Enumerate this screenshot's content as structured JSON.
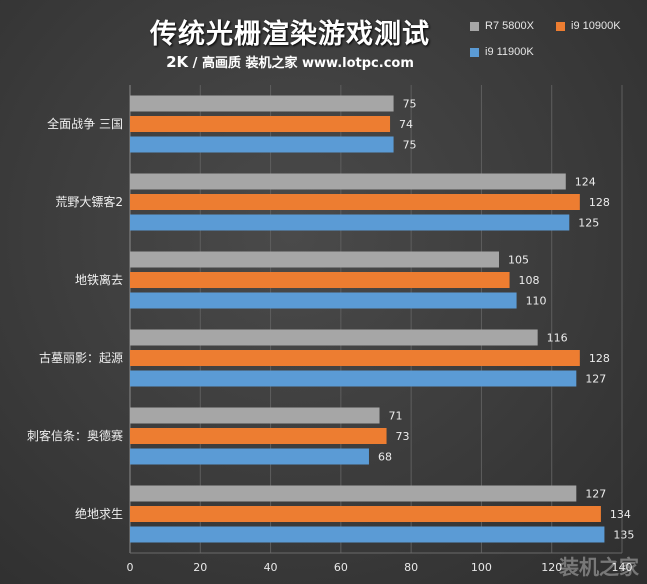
{
  "header": {
    "title": "传统光栅渲染游戏测试",
    "subtitle_res": "2K",
    "subtitle_rest": " / 高画质  装机之家 www.lotpc.com"
  },
  "legend": [
    {
      "label": "R7 5800X",
      "color": "#a6a6a6"
    },
    {
      "label": "i9 10900K",
      "color": "#ed7d31"
    },
    {
      "label": "i9 11900K",
      "color": "#5b9bd5"
    }
  ],
  "watermark": "装机之家",
  "chart_data": {
    "type": "bar",
    "orientation": "horizontal",
    "title": "传统光栅渲染游戏测试",
    "subtitle": "2K / 高画质 装机之家 www.lotpc.com",
    "categories": [
      "全面战争 三国",
      "荒野大镖客2",
      "地铁离去",
      "古墓丽影：起源",
      "刺客信条：奥德赛",
      "绝地求生"
    ],
    "series": [
      {
        "name": "R7 5800X",
        "values": [
          75,
          124,
          105,
          116,
          71,
          127
        ]
      },
      {
        "name": "i9 10900K",
        "values": [
          74,
          128,
          108,
          128,
          73,
          134
        ]
      },
      {
        "name": "i9 11900K",
        "values": [
          75,
          125,
          110,
          127,
          68,
          135
        ]
      }
    ],
    "xlim": [
      0,
      140
    ],
    "xticks": [
      0,
      20,
      40,
      60,
      80,
      100,
      120,
      140
    ],
    "grid": true,
    "legend_position": "top-right",
    "data_labels": true
  }
}
